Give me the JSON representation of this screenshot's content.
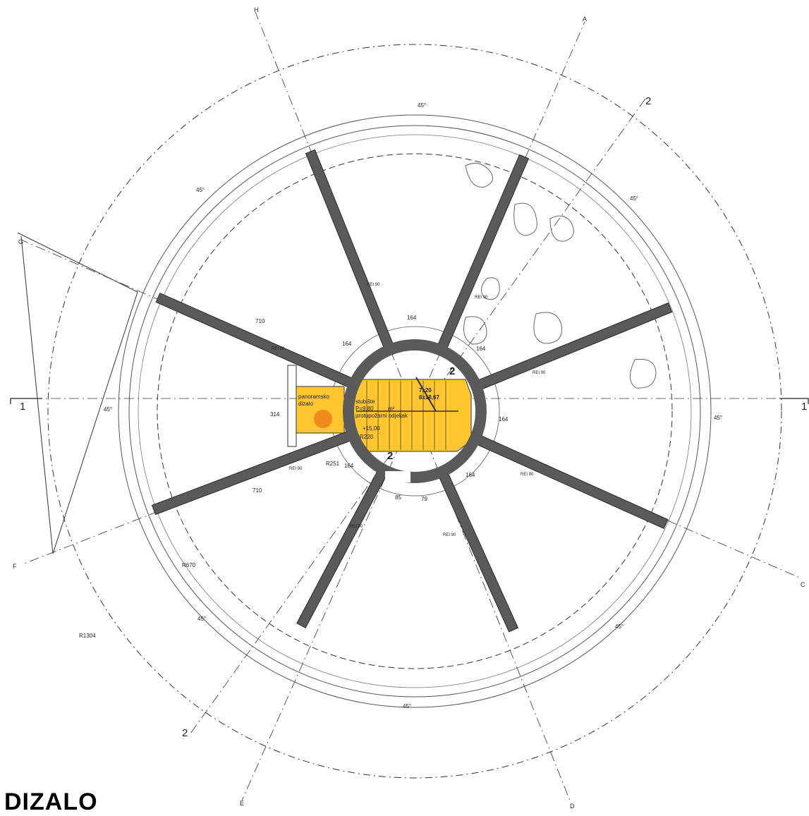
{
  "heading": "DIZALO",
  "axes": [
    "A",
    "C",
    "D",
    "E",
    "F",
    "G",
    "H"
  ],
  "section_markers": {
    "left_number": "1",
    "right_number": "1",
    "upper_right": "2",
    "lower_left": "2",
    "core_upper": "2",
    "core_lower": "2"
  },
  "dimensions": {
    "angle": "45°",
    "wall_length": "710",
    "core_gap": "164",
    "lift_width": "314",
    "opening_left": "85",
    "opening_right": "79",
    "radius_inner": "R251",
    "radius_core": "R220",
    "radius_mid": "R670",
    "radius_outer": "R1304"
  },
  "wall_label": "REI 90",
  "lift_label": [
    "panoramsko",
    "dizalo"
  ],
  "stair": {
    "steps_a": "7x20",
    "steps_b": "8x18,67",
    "label": "stubište",
    "area": "P=9,80",
    "area_unit": "m²",
    "fire_zone": "protupožarni odjeljak",
    "level": "+15,00"
  },
  "colors": {
    "fill": "#ffc630",
    "wall": "#5a5a5a",
    "line": "#222222"
  }
}
